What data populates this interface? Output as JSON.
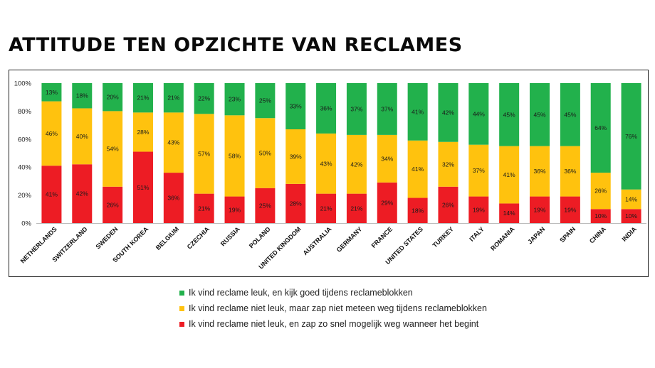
{
  "title": "ATTITUDE TEN OPZICHTE VAN RECLAMES",
  "colors": {
    "green": "#22b14c",
    "yellow": "#ffc20e",
    "red": "#ed1c24"
  },
  "legend": [
    {
      "label": "Ik vind reclame leuk, en kijk goed tijdens reclameblokken",
      "color": "#22b14c"
    },
    {
      "label": "Ik vind reclame niet leuk, maar zap niet meteen weg tijdens reclameblokken",
      "color": "#ffc20e"
    },
    {
      "label": "Ik vind reclame niet leuk, en zap zo snel mogelijk weg wanneer het begint",
      "color": "#ed1c24"
    }
  ],
  "chart_data": {
    "type": "bar",
    "stacked": true,
    "title": "ATTITUDE TEN OPZICHTE VAN RECLAMES",
    "xlabel": "",
    "ylabel": "",
    "ylim": [
      0,
      100
    ],
    "yticks": [
      "0%",
      "20%",
      "40%",
      "60%",
      "80%",
      "100%"
    ],
    "categories": [
      "NETHERLANDS",
      "SWITZERLAND",
      "SWEDEN",
      "SOUTH KOREA",
      "BELGIUM",
      "CZECHIA",
      "RUSSIA",
      "POLAND",
      "UNITED KINGDOM",
      "AUSTRALIA",
      "GERMANY",
      "FRANCE",
      "UNITED STATES",
      "TURKEY",
      "ITALY",
      "ROMANIA",
      "JAPAN",
      "SPAIN",
      "CHINA",
      "INDIA"
    ],
    "series": [
      {
        "name": "Ik vind reclame niet leuk, en zap zo snel mogelijk weg wanneer het begint",
        "color": "#ed1c24",
        "values": [
          41,
          42,
          26,
          51,
          36,
          21,
          19,
          25,
          28,
          21,
          21,
          29,
          18,
          26,
          19,
          14,
          19,
          19,
          10,
          10
        ]
      },
      {
        "name": "Ik vind reclame niet leuk, maar zap niet meteen weg tijdens reclameblokken",
        "color": "#ffc20e",
        "values": [
          46,
          40,
          54,
          28,
          43,
          57,
          58,
          50,
          39,
          43,
          42,
          34,
          41,
          32,
          37,
          41,
          36,
          36,
          26,
          14
        ]
      },
      {
        "name": "Ik vind reclame leuk, en kijk goed tijdens reclameblokken",
        "color": "#22b14c",
        "values": [
          13,
          18,
          20,
          21,
          21,
          22,
          23,
          25,
          33,
          36,
          37,
          37,
          41,
          42,
          44,
          45,
          45,
          45,
          64,
          76
        ]
      }
    ],
    "legend_position": "bottom"
  }
}
